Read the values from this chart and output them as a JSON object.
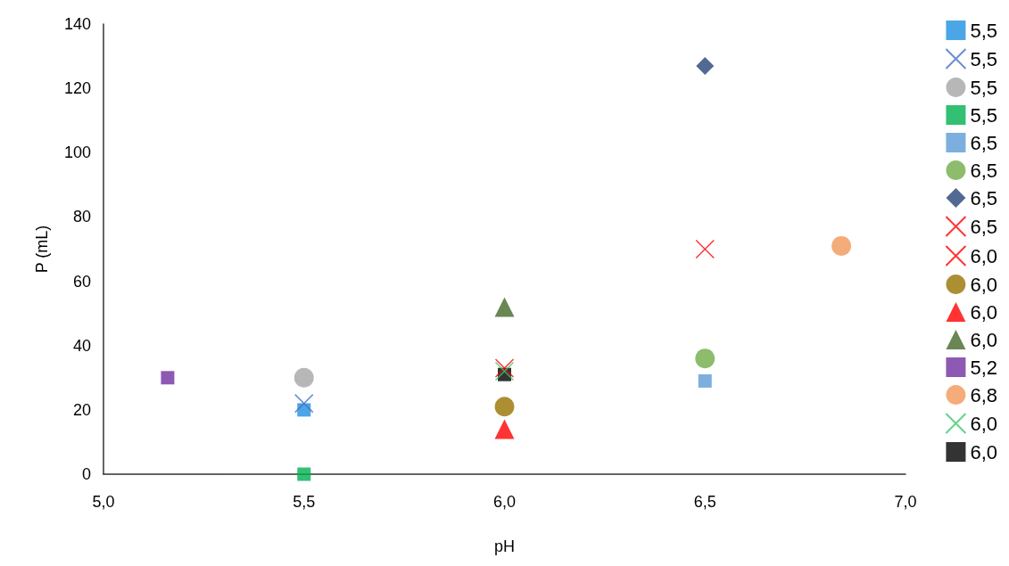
{
  "chart_data": {
    "type": "scatter",
    "xlabel": "pH",
    "ylabel": "P (mL)",
    "xlim": [
      5,
      7
    ],
    "xticks": [
      {
        "value": 5,
        "label": "5,0"
      },
      {
        "value": 5.5,
        "label": "5,5"
      },
      {
        "value": 6,
        "label": "6,0"
      },
      {
        "value": 6.5,
        "label": "6,5"
      },
      {
        "value": 7,
        "label": "7,0"
      }
    ],
    "ylim": [
      0,
      140
    ],
    "yticks": [
      0,
      20,
      40,
      60,
      80,
      100,
      120,
      140
    ],
    "grid": false,
    "legend": "right",
    "series": [
      {
        "name": "5,5",
        "color": "#1e90e0",
        "marker": "square",
        "x": [
          5.5
        ],
        "values": [
          20
        ]
      },
      {
        "name": "5,5",
        "color": "#4472c4",
        "marker": "cross",
        "x": [
          5.5
        ],
        "values": [
          22
        ]
      },
      {
        "name": "5,5",
        "color": "#a5a5a5",
        "marker": "circle",
        "x": [
          5.5
        ],
        "values": [
          30
        ]
      },
      {
        "name": "5,5",
        "color": "#00b050",
        "marker": "square",
        "x": [
          5.5
        ],
        "values": [
          0
        ]
      },
      {
        "name": "6,5",
        "color": "#5b9bd5",
        "marker": "square",
        "x": [
          6.5
        ],
        "values": [
          29
        ]
      },
      {
        "name": "6,5",
        "color": "#70ad47",
        "marker": "circle",
        "x": [
          6.5
        ],
        "values": [
          36
        ]
      },
      {
        "name": "6,5",
        "color": "#264478",
        "marker": "diamond",
        "x": [
          6.5
        ],
        "values": [
          127
        ]
      },
      {
        "name": "6,5",
        "color": "#ff0000",
        "marker": "cross",
        "x": [
          6.5
        ],
        "values": [
          70
        ]
      },
      {
        "name": "6,0",
        "color": "#ff0000",
        "marker": "cross",
        "x": [
          6.0
        ],
        "values": [
          33
        ]
      },
      {
        "name": "6,0",
        "color": "#997300",
        "marker": "circle",
        "x": [
          6.0
        ],
        "values": [
          21
        ]
      },
      {
        "name": "6,0",
        "color": "#ff0000",
        "marker": "triangle",
        "x": [
          6.0
        ],
        "values": [
          14
        ]
      },
      {
        "name": "6,0",
        "color": "#43682b",
        "marker": "triangle",
        "x": [
          6.0
        ],
        "values": [
          52
        ]
      },
      {
        "name": "5,2",
        "color": "#7030a0",
        "marker": "square",
        "x": [
          5.16
        ],
        "values": [
          30
        ]
      },
      {
        "name": "6,8",
        "color": "#f1975a",
        "marker": "circle",
        "x": [
          6.84
        ],
        "values": [
          71
        ]
      },
      {
        "name": "6,0",
        "color": "#3cc86e",
        "marker": "cross",
        "x": [
          6.0
        ],
        "values": [
          32
        ]
      },
      {
        "name": "6,0",
        "color": "#000000",
        "marker": "square",
        "x": [
          6.0
        ],
        "values": [
          31
        ]
      }
    ]
  }
}
